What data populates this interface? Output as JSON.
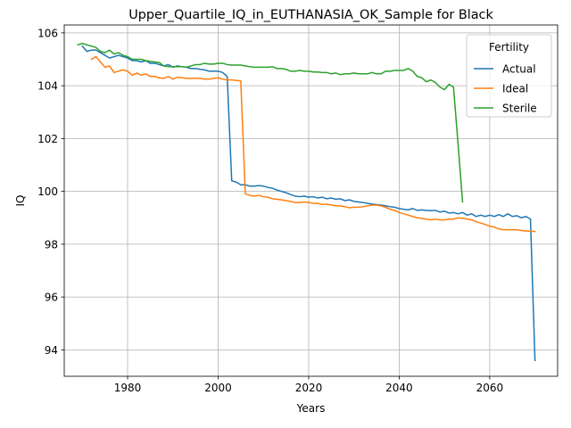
{
  "chart_data": {
    "type": "line",
    "title": "Upper_Quartile_IQ_in_EUTHANASIA_OK_Sample for Black",
    "xlabel": "Years",
    "ylabel": "IQ",
    "xlim": [
      1966,
      2075
    ],
    "ylim": [
      93.0,
      106.3
    ],
    "xticks": [
      1980,
      2000,
      2020,
      2040,
      2060
    ],
    "yticks": [
      94,
      96,
      98,
      100,
      102,
      104,
      106
    ],
    "grid": true,
    "legend": {
      "title": "Fertility",
      "position": "top-right"
    },
    "series": [
      {
        "name": "Actual",
        "color": "#1f77b4",
        "points": [
          [
            1970,
            105.5
          ],
          [
            1971,
            105.3
          ],
          [
            1972,
            105.35
          ],
          [
            1973,
            105.35
          ],
          [
            1974,
            105.25
          ],
          [
            1975,
            105.15
          ],
          [
            1976,
            105.05
          ],
          [
            1977,
            105.1
          ],
          [
            1978,
            105.15
          ],
          [
            1979,
            105.1
          ],
          [
            1980,
            105.05
          ],
          [
            1981,
            104.95
          ],
          [
            1982,
            104.95
          ],
          [
            1983,
            104.9
          ],
          [
            1984,
            104.95
          ],
          [
            1985,
            104.85
          ],
          [
            1986,
            104.85
          ],
          [
            1987,
            104.8
          ],
          [
            1988,
            104.75
          ],
          [
            1989,
            104.8
          ],
          [
            1990,
            104.7
          ],
          [
            1991,
            104.75
          ],
          [
            1992,
            104.72
          ],
          [
            1993,
            104.7
          ],
          [
            1994,
            104.65
          ],
          [
            1995,
            104.65
          ],
          [
            1996,
            104.62
          ],
          [
            1997,
            104.6
          ],
          [
            1998,
            104.55
          ],
          [
            1999,
            104.55
          ],
          [
            2000,
            104.55
          ],
          [
            2001,
            104.5
          ],
          [
            2002,
            104.35
          ],
          [
            2003,
            100.4
          ],
          [
            2004,
            100.35
          ],
          [
            2005,
            100.25
          ],
          [
            2006,
            100.25
          ],
          [
            2007,
            100.2
          ],
          [
            2008,
            100.2
          ],
          [
            2009,
            100.22
          ],
          [
            2010,
            100.2
          ],
          [
            2011,
            100.15
          ],
          [
            2012,
            100.12
          ],
          [
            2013,
            100.05
          ],
          [
            2014,
            100.0
          ],
          [
            2015,
            99.95
          ],
          [
            2016,
            99.88
          ],
          [
            2017,
            99.82
          ],
          [
            2018,
            99.8
          ],
          [
            2019,
            99.82
          ],
          [
            2020,
            99.78
          ],
          [
            2021,
            99.8
          ],
          [
            2022,
            99.75
          ],
          [
            2023,
            99.78
          ],
          [
            2024,
            99.72
          ],
          [
            2025,
            99.75
          ],
          [
            2026,
            99.7
          ],
          [
            2027,
            99.72
          ],
          [
            2028,
            99.65
          ],
          [
            2029,
            99.68
          ],
          [
            2030,
            99.62
          ],
          [
            2031,
            99.6
          ],
          [
            2032,
            99.58
          ],
          [
            2033,
            99.55
          ],
          [
            2034,
            99.52
          ],
          [
            2035,
            99.5
          ],
          [
            2036,
            99.48
          ],
          [
            2037,
            99.45
          ],
          [
            2038,
            99.42
          ],
          [
            2039,
            99.4
          ],
          [
            2040,
            99.35
          ],
          [
            2041,
            99.32
          ],
          [
            2042,
            99.3
          ],
          [
            2043,
            99.35
          ],
          [
            2044,
            99.28
          ],
          [
            2045,
            99.3
          ],
          [
            2046,
            99.28
          ],
          [
            2047,
            99.27
          ],
          [
            2048,
            99.28
          ],
          [
            2049,
            99.22
          ],
          [
            2050,
            99.25
          ],
          [
            2051,
            99.18
          ],
          [
            2052,
            99.2
          ],
          [
            2053,
            99.15
          ],
          [
            2054,
            99.2
          ],
          [
            2055,
            99.1
          ],
          [
            2056,
            99.15
          ],
          [
            2057,
            99.05
          ],
          [
            2058,
            99.1
          ],
          [
            2059,
            99.05
          ],
          [
            2060,
            99.1
          ],
          [
            2061,
            99.05
          ],
          [
            2062,
            99.12
          ],
          [
            2063,
            99.05
          ],
          [
            2064,
            99.15
          ],
          [
            2065,
            99.05
          ],
          [
            2066,
            99.08
          ],
          [
            2067,
            99.0
          ],
          [
            2068,
            99.05
          ],
          [
            2069,
            98.95
          ],
          [
            2070,
            93.6
          ]
        ]
      },
      {
        "name": "Ideal",
        "color": "#ff7f0e",
        "points": [
          [
            1972,
            105.0
          ],
          [
            1973,
            105.1
          ],
          [
            1974,
            104.9
          ],
          [
            1975,
            104.7
          ],
          [
            1976,
            104.75
          ],
          [
            1977,
            104.5
          ],
          [
            1978,
            104.55
          ],
          [
            1979,
            104.6
          ],
          [
            1980,
            104.55
          ],
          [
            1981,
            104.4
          ],
          [
            1982,
            104.48
          ],
          [
            1983,
            104.4
          ],
          [
            1984,
            104.45
          ],
          [
            1985,
            104.35
          ],
          [
            1986,
            104.35
          ],
          [
            1987,
            104.3
          ],
          [
            1988,
            104.28
          ],
          [
            1989,
            104.35
          ],
          [
            1990,
            104.25
          ],
          [
            1991,
            104.32
          ],
          [
            1992,
            104.3
          ],
          [
            1993,
            104.28
          ],
          [
            1994,
            104.28
          ],
          [
            1995,
            104.28
          ],
          [
            1996,
            104.28
          ],
          [
            1997,
            104.25
          ],
          [
            1998,
            104.25
          ],
          [
            1999,
            104.28
          ],
          [
            2000,
            104.3
          ],
          [
            2001,
            104.25
          ],
          [
            2002,
            104.22
          ],
          [
            2003,
            104.22
          ],
          [
            2004,
            104.2
          ],
          [
            2005,
            104.18
          ],
          [
            2006,
            99.9
          ],
          [
            2007,
            99.85
          ],
          [
            2008,
            99.82
          ],
          [
            2009,
            99.85
          ],
          [
            2010,
            99.8
          ],
          [
            2011,
            99.78
          ],
          [
            2012,
            99.72
          ],
          [
            2013,
            99.7
          ],
          [
            2014,
            99.68
          ],
          [
            2015,
            99.65
          ],
          [
            2016,
            99.62
          ],
          [
            2017,
            99.58
          ],
          [
            2018,
            99.58
          ],
          [
            2019,
            99.6
          ],
          [
            2020,
            99.58
          ],
          [
            2021,
            99.55
          ],
          [
            2022,
            99.55
          ],
          [
            2023,
            99.5
          ],
          [
            2024,
            99.52
          ],
          [
            2025,
            99.48
          ],
          [
            2026,
            99.45
          ],
          [
            2027,
            99.45
          ],
          [
            2028,
            99.42
          ],
          [
            2029,
            99.38
          ],
          [
            2030,
            99.4
          ],
          [
            2031,
            99.4
          ],
          [
            2032,
            99.42
          ],
          [
            2033,
            99.45
          ],
          [
            2034,
            99.48
          ],
          [
            2035,
            99.48
          ],
          [
            2036,
            99.45
          ],
          [
            2037,
            99.4
          ],
          [
            2038,
            99.32
          ],
          [
            2039,
            99.28
          ],
          [
            2040,
            99.2
          ],
          [
            2041,
            99.15
          ],
          [
            2042,
            99.1
          ],
          [
            2043,
            99.05
          ],
          [
            2044,
            99.0
          ],
          [
            2045,
            98.98
          ],
          [
            2046,
            98.95
          ],
          [
            2047,
            98.92
          ],
          [
            2048,
            98.95
          ],
          [
            2049,
            98.92
          ],
          [
            2050,
            98.92
          ],
          [
            2051,
            98.95
          ],
          [
            2052,
            98.95
          ],
          [
            2053,
            99.0
          ],
          [
            2054,
            98.98
          ],
          [
            2055,
            98.95
          ],
          [
            2056,
            98.92
          ],
          [
            2057,
            98.85
          ],
          [
            2058,
            98.8
          ],
          [
            2059,
            98.75
          ],
          [
            2060,
            98.68
          ],
          [
            2061,
            98.65
          ],
          [
            2062,
            98.58
          ],
          [
            2063,
            98.55
          ],
          [
            2064,
            98.55
          ],
          [
            2065,
            98.55
          ],
          [
            2066,
            98.55
          ],
          [
            2067,
            98.52
          ],
          [
            2068,
            98.5
          ],
          [
            2069,
            98.5
          ],
          [
            2070,
            98.48
          ]
        ]
      },
      {
        "name": "Sterile",
        "color": "#2ca02c",
        "points": [
          [
            1969,
            105.55
          ],
          [
            1970,
            105.6
          ],
          [
            1971,
            105.55
          ],
          [
            1972,
            105.5
          ],
          [
            1973,
            105.45
          ],
          [
            1974,
            105.3
          ],
          [
            1975,
            105.25
          ],
          [
            1976,
            105.35
          ],
          [
            1977,
            105.2
          ],
          [
            1978,
            105.25
          ],
          [
            1979,
            105.15
          ],
          [
            1980,
            105.1
          ],
          [
            1981,
            105.0
          ],
          [
            1982,
            105.0
          ],
          [
            1983,
            105.0
          ],
          [
            1984,
            104.95
          ],
          [
            1985,
            104.92
          ],
          [
            1986,
            104.9
          ],
          [
            1987,
            104.88
          ],
          [
            1988,
            104.75
          ],
          [
            1989,
            104.72
          ],
          [
            1990,
            104.72
          ],
          [
            1991,
            104.72
          ],
          [
            1992,
            104.72
          ],
          [
            1993,
            104.7
          ],
          [
            1994,
            104.75
          ],
          [
            1995,
            104.8
          ],
          [
            1996,
            104.8
          ],
          [
            1997,
            104.85
          ],
          [
            1998,
            104.82
          ],
          [
            1999,
            104.82
          ],
          [
            2000,
            104.85
          ],
          [
            2001,
            104.85
          ],
          [
            2002,
            104.8
          ],
          [
            2003,
            104.78
          ],
          [
            2004,
            104.78
          ],
          [
            2005,
            104.78
          ],
          [
            2006,
            104.75
          ],
          [
            2007,
            104.72
          ],
          [
            2008,
            104.7
          ],
          [
            2009,
            104.7
          ],
          [
            2010,
            104.7
          ],
          [
            2011,
            104.7
          ],
          [
            2012,
            104.72
          ],
          [
            2013,
            104.65
          ],
          [
            2014,
            104.65
          ],
          [
            2015,
            104.62
          ],
          [
            2016,
            104.55
          ],
          [
            2017,
            104.55
          ],
          [
            2018,
            104.58
          ],
          [
            2019,
            104.55
          ],
          [
            2020,
            104.55
          ],
          [
            2021,
            104.52
          ],
          [
            2022,
            104.52
          ],
          [
            2023,
            104.5
          ],
          [
            2024,
            104.5
          ],
          [
            2025,
            104.45
          ],
          [
            2026,
            104.48
          ],
          [
            2027,
            104.42
          ],
          [
            2028,
            104.45
          ],
          [
            2029,
            104.45
          ],
          [
            2030,
            104.48
          ],
          [
            2031,
            104.45
          ],
          [
            2032,
            104.45
          ],
          [
            2033,
            104.45
          ],
          [
            2034,
            104.5
          ],
          [
            2035,
            104.45
          ],
          [
            2036,
            104.45
          ],
          [
            2037,
            104.55
          ],
          [
            2038,
            104.55
          ],
          [
            2039,
            104.58
          ],
          [
            2040,
            104.58
          ],
          [
            2041,
            104.58
          ],
          [
            2042,
            104.65
          ],
          [
            2043,
            104.55
          ],
          [
            2044,
            104.35
          ],
          [
            2045,
            104.3
          ],
          [
            2046,
            104.15
          ],
          [
            2047,
            104.22
          ],
          [
            2048,
            104.12
          ],
          [
            2049,
            103.95
          ],
          [
            2050,
            103.85
          ],
          [
            2051,
            104.05
          ],
          [
            2052,
            103.95
          ],
          [
            2053,
            101.8
          ],
          [
            2054,
            99.6
          ]
        ]
      }
    ]
  }
}
